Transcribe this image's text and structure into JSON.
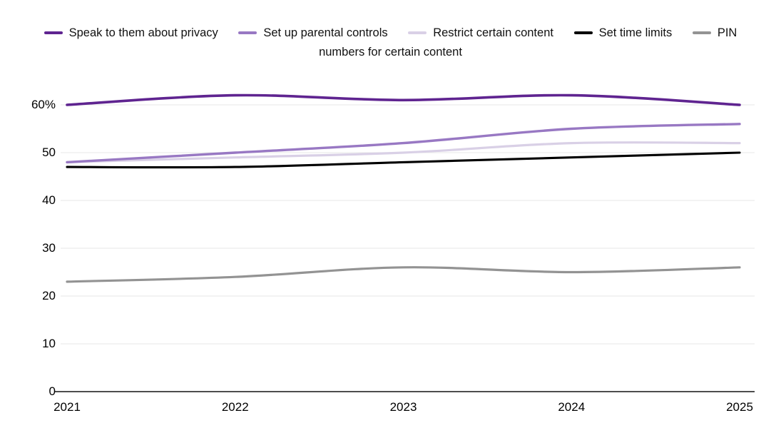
{
  "legend": {
    "items": [
      {
        "label": "Speak to them about privacy",
        "color": "#5f2490"
      },
      {
        "label": "Set up parental controls",
        "color": "#9878c3"
      },
      {
        "label": "Restrict certain content",
        "color": "#d9d0e6"
      },
      {
        "label": "Set time limits",
        "color": "#000000"
      },
      {
        "label": "PIN",
        "color": "#939393"
      }
    ],
    "wrap_line": "numbers for certain content"
  },
  "chart_data": {
    "type": "line",
    "categories": [
      "2021",
      "2022",
      "2023",
      "2024",
      "2025"
    ],
    "series": [
      {
        "name": "Speak to them about privacy",
        "color": "#5f2490",
        "values": [
          60,
          62,
          61,
          62,
          60
        ]
      },
      {
        "name": "Set up parental controls",
        "color": "#9878c3",
        "values": [
          48,
          50,
          52,
          55,
          56
        ]
      },
      {
        "name": "Restrict certain content",
        "color": "#d9d0e6",
        "values": [
          48,
          49,
          50,
          52,
          52
        ]
      },
      {
        "name": "Set time limits",
        "color": "#000000",
        "values": [
          47,
          47,
          48,
          49,
          50
        ]
      },
      {
        "name": "PIN numbers for certain content",
        "color": "#939393",
        "values": [
          23,
          24,
          26,
          25,
          26
        ]
      }
    ],
    "yticks": [
      {
        "value": 0,
        "label": "0"
      },
      {
        "value": 10,
        "label": "10"
      },
      {
        "value": 20,
        "label": "20"
      },
      {
        "value": 30,
        "label": "30"
      },
      {
        "value": 40,
        "label": "40"
      },
      {
        "value": 50,
        "label": "50"
      },
      {
        "value": 60,
        "label": "60%"
      }
    ],
    "ylim": [
      0,
      65
    ],
    "grid": "horizontal",
    "legend_position": "top-center",
    "colors": {
      "gridline": "#ececec",
      "axis_line": "#4d4d4d",
      "tick_text": "#000000"
    }
  }
}
